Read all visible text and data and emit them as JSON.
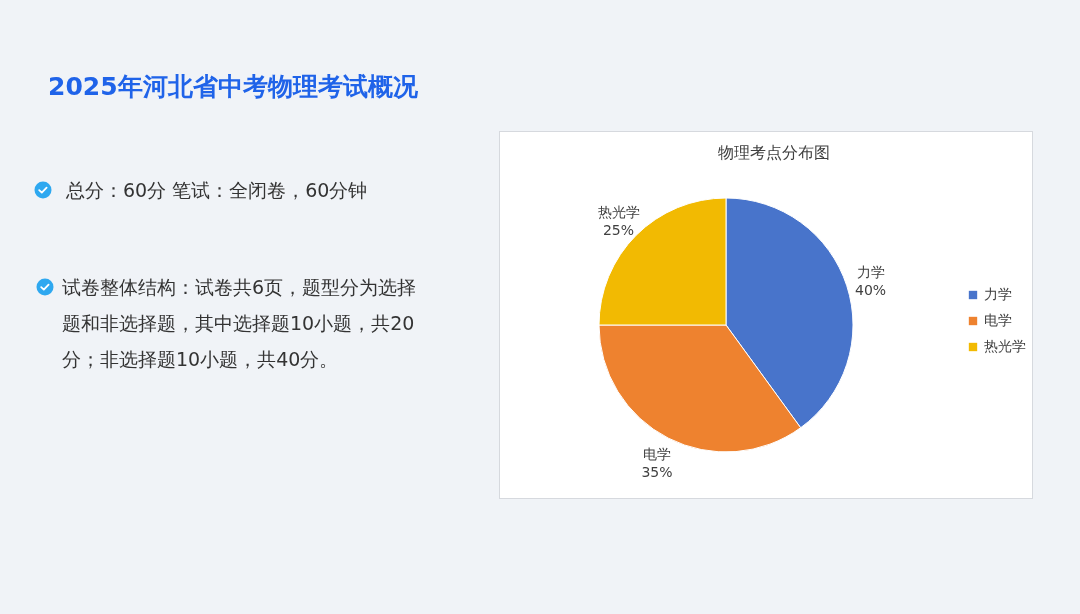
{
  "chart_data": [
    {
      "type": "other",
      "title": "2025年河北省中考物理考试概况",
      "annotations": [
        "总分：60分 笔试：全闭卷，60分钟",
        "试卷整体结构：试卷共6页，题型分为选择题和非选择题，其中选择题10小题，共20分；非选择题10小题，共40分。"
      ]
    },
    {
      "type": "pie",
      "title": "物理考点分布图",
      "categories": [
        "力学",
        "电学",
        "热光学"
      ],
      "values": [
        40,
        35,
        25
      ],
      "value_labels": [
        "40%",
        "35%",
        "25%"
      ],
      "colors": [
        "#4874cb",
        "#ee822f",
        "#f2ba02"
      ],
      "legend": "right"
    }
  ]
}
